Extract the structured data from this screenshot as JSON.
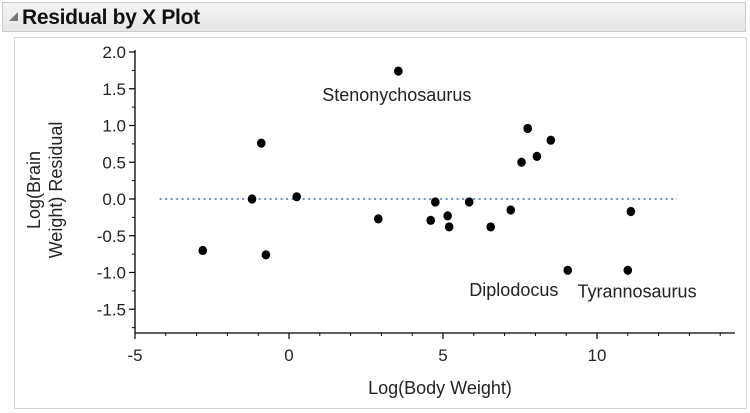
{
  "window": {
    "title": "Residual by X Plot"
  },
  "chart_data": {
    "type": "scatter",
    "title": "Residual by X Plot",
    "xlabel": "Log(Body Weight)",
    "ylabel": "Log(Brain Weight) Residual",
    "ylabel_lines": [
      "Log(Brain",
      "Weight) Residual"
    ],
    "xlim": [
      -5,
      15
    ],
    "ylim": [
      -1.8,
      2.0
    ],
    "xticks": [
      -5,
      0,
      5,
      10
    ],
    "xtick_labels": [
      "-5",
      "0",
      "5",
      "10"
    ],
    "yticks": [
      2.0,
      1.5,
      1.0,
      0.5,
      0.0,
      -0.5,
      -1.0,
      -1.5
    ],
    "ytick_labels": [
      "2.0",
      "1.5",
      "1.0",
      "0.5",
      "0.0",
      "-0.5",
      "-1.0",
      "-1.5"
    ],
    "reference_line": {
      "y": 0,
      "x_range": [
        -4.2,
        12.6
      ],
      "style": "dotted",
      "color": "#3f6fb0"
    },
    "points": [
      {
        "x": -2.8,
        "y": -0.7
      },
      {
        "x": -1.2,
        "y": 0.0
      },
      {
        "x": -0.9,
        "y": 0.76
      },
      {
        "x": -0.75,
        "y": -0.76
      },
      {
        "x": 0.25,
        "y": 0.03
      },
      {
        "x": 2.9,
        "y": -0.27
      },
      {
        "x": 3.55,
        "y": 1.74
      },
      {
        "x": 4.6,
        "y": -0.29
      },
      {
        "x": 4.75,
        "y": -0.04
      },
      {
        "x": 5.15,
        "y": -0.23
      },
      {
        "x": 5.2,
        "y": -0.38
      },
      {
        "x": 5.85,
        "y": -0.04
      },
      {
        "x": 6.55,
        "y": -0.38
      },
      {
        "x": 7.2,
        "y": -0.15
      },
      {
        "x": 7.55,
        "y": 0.5
      },
      {
        "x": 7.75,
        "y": 0.96
      },
      {
        "x": 8.05,
        "y": 0.58
      },
      {
        "x": 8.5,
        "y": 0.8
      },
      {
        "x": 9.05,
        "y": -0.97
      },
      {
        "x": 11.0,
        "y": -0.97
      },
      {
        "x": 11.1,
        "y": -0.17
      }
    ],
    "annotations": [
      {
        "text": "Stenonychosaurus",
        "x": 3.5,
        "y": 1.33,
        "anchor": "middle"
      },
      {
        "text": "Diplodocus",
        "x": 7.3,
        "y": -1.32,
        "anchor": "middle"
      },
      {
        "text": "Tyrannosaurus",
        "x": 11.3,
        "y": -1.34,
        "anchor": "middle"
      }
    ],
    "colors": {
      "points": "#000000",
      "axes": "#000000",
      "text": "#222222"
    }
  }
}
